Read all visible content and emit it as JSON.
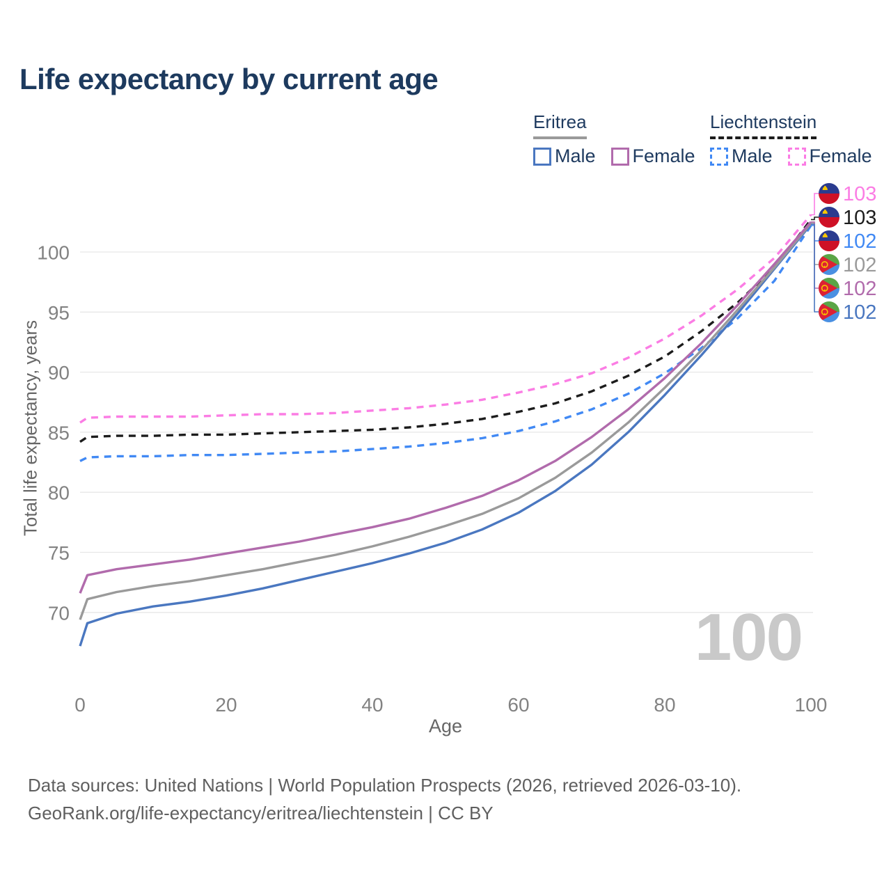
{
  "title": "Life expectancy by current age",
  "legend": {
    "groups": [
      {
        "name": "Eritrea",
        "line_style": "solid",
        "all_series_key": "eritrea-all",
        "items": [
          {
            "label": "Male",
            "series_key": "eritrea-male"
          },
          {
            "label": "Female",
            "series_key": "eritrea-female"
          }
        ]
      },
      {
        "name": "Liechtenstein",
        "line_style": "dashed",
        "all_series_key": "liechtenstein-all",
        "items": [
          {
            "label": "Male",
            "series_key": "liechtenstein-male"
          },
          {
            "label": "Female",
            "series_key": "liechtenstein-female"
          }
        ]
      }
    ]
  },
  "watermark": "100",
  "footer": {
    "line1": "Data sources: United Nations | World Population Prospects (2026, retrieved 2026-03-10).",
    "line2": "GeoRank.org/life-expectancy/eritrea/liechtenstein | CC BY"
  },
  "chart_data": {
    "type": "line",
    "title": "Life expectancy by current age",
    "xlabel": "Age",
    "ylabel": "Total life expectancy, years",
    "xlim": [
      0,
      100
    ],
    "ylim": [
      64,
      104
    ],
    "x_ticks": [
      0,
      20,
      40,
      60,
      80,
      100
    ],
    "y_ticks": [
      70,
      75,
      80,
      85,
      90,
      95,
      100
    ],
    "grid": "horizontal-only",
    "legend_position": "top-right",
    "x": [
      0,
      1,
      5,
      10,
      15,
      20,
      25,
      30,
      35,
      40,
      45,
      50,
      55,
      60,
      65,
      70,
      75,
      80,
      85,
      90,
      95,
      100
    ],
    "series": [
      {
        "key": "eritrea-male",
        "country": "Eritrea",
        "sex": "Male",
        "line": "solid",
        "color": "#4a77c0",
        "flag": "eritrea",
        "values": [
          67.2,
          69.1,
          69.9,
          70.5,
          70.9,
          71.4,
          72.0,
          72.7,
          73.4,
          74.1,
          74.9,
          75.8,
          76.9,
          78.3,
          80.1,
          82.3,
          85.0,
          88.1,
          91.4,
          94.9,
          98.6,
          102.3
        ],
        "end_label": {
          "value": "102",
          "color": "#4a77c0"
        }
      },
      {
        "key": "eritrea-all",
        "country": "Eritrea",
        "sex": "All",
        "line": "solid",
        "color": "#9a9a9a",
        "flag": "eritrea",
        "values": [
          69.4,
          71.1,
          71.7,
          72.2,
          72.6,
          73.1,
          73.6,
          74.2,
          74.8,
          75.5,
          76.3,
          77.2,
          78.2,
          79.5,
          81.2,
          83.3,
          85.8,
          88.7,
          91.8,
          95.2,
          98.7,
          102.4
        ],
        "end_label": {
          "value": "102",
          "color": "#9a9a9a"
        }
      },
      {
        "key": "eritrea-female",
        "country": "Eritrea",
        "sex": "Female",
        "line": "solid",
        "color": "#b16bac",
        "flag": "eritrea",
        "values": [
          71.6,
          73.1,
          73.6,
          74.0,
          74.4,
          74.9,
          75.4,
          75.9,
          76.5,
          77.1,
          77.8,
          78.7,
          79.7,
          81.0,
          82.6,
          84.6,
          86.9,
          89.5,
          92.4,
          95.6,
          99.0,
          102.5
        ],
        "end_label": {
          "value": "102",
          "color": "#b16bac"
        }
      },
      {
        "key": "liechtenstein-male",
        "country": "Liechtenstein",
        "sex": "Male",
        "line": "dashed",
        "color": "#4189f4",
        "flag": "liechtenstein",
        "values": [
          82.6,
          82.9,
          83.0,
          83.0,
          83.1,
          83.1,
          83.2,
          83.3,
          83.4,
          83.6,
          83.8,
          84.1,
          84.5,
          85.1,
          85.9,
          86.9,
          88.2,
          89.9,
          92.0,
          94.5,
          97.6,
          102.2
        ],
        "end_label": {
          "value": "102",
          "color": "#4189f4"
        }
      },
      {
        "key": "liechtenstein-all",
        "country": "Liechtenstein",
        "sex": "All",
        "line": "dashed",
        "color": "#1c1c1c",
        "flag": "liechtenstein",
        "values": [
          84.2,
          84.6,
          84.7,
          84.7,
          84.8,
          84.8,
          84.9,
          85.0,
          85.1,
          85.2,
          85.4,
          85.7,
          86.1,
          86.7,
          87.4,
          88.4,
          89.7,
          91.3,
          93.4,
          95.8,
          98.7,
          102.7
        ],
        "end_label": {
          "value": "103",
          "color": "#1c1c1c"
        }
      },
      {
        "key": "liechtenstein-female",
        "country": "Liechtenstein",
        "sex": "Female",
        "line": "dashed",
        "color": "#fb7de4",
        "flag": "liechtenstein",
        "values": [
          85.8,
          86.2,
          86.3,
          86.3,
          86.3,
          86.4,
          86.5,
          86.5,
          86.6,
          86.8,
          87.0,
          87.3,
          87.7,
          88.3,
          89.0,
          89.9,
          91.2,
          92.8,
          94.7,
          96.9,
          99.5,
          103.1
        ],
        "end_label": {
          "value": "103",
          "color": "#fb7de4"
        }
      }
    ],
    "end_label_order": [
      "liechtenstein-female",
      "liechtenstein-all",
      "liechtenstein-male",
      "eritrea-all",
      "eritrea-female",
      "eritrea-male"
    ],
    "flag_colors": {
      "liechtenstein_blue": "#2a3b8f",
      "liechtenstein_red": "#ce1126",
      "liechtenstein_crown": "#f7c600",
      "eritrea_green": "#5aa546",
      "eritrea_blue": "#4a90e2",
      "eritrea_red": "#dd2033",
      "eritrea_gold": "#f7c600"
    },
    "style_colors": {
      "title": "#1d3a5e",
      "tick_label": "#828282",
      "gridline": "#e7e7e7",
      "axis_title": "#666666",
      "watermark": "#c9c9c9",
      "footer": "#5f5f5f"
    }
  }
}
